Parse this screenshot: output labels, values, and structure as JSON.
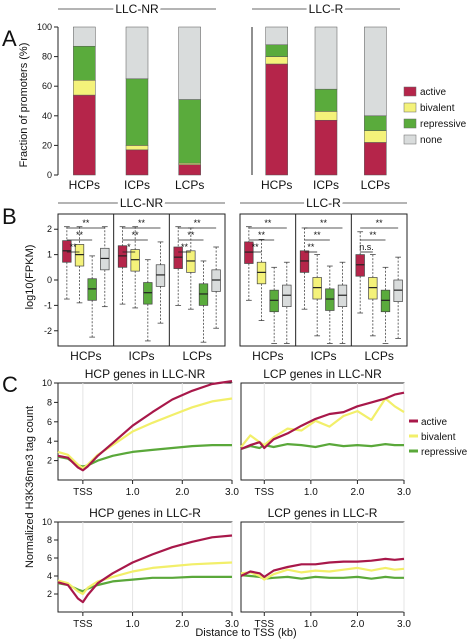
{
  "colors": {
    "active": "#b5254a",
    "bivalent": "#f4f27a",
    "repressive": "#5aab3c",
    "none": "#d9dcdc"
  },
  "panels": {
    "a": "A",
    "b": "B",
    "c": "C"
  },
  "chart_data": [
    {
      "id": "A-LLC-NR",
      "type": "bar",
      "stacked": true,
      "title": "LLC-NR",
      "ylabel": "Fraction of promoters (%)",
      "ylim": [
        0,
        100
      ],
      "yticks": [
        "0",
        "20",
        "40",
        "60",
        "80",
        "100"
      ],
      "categories": [
        "HCPs",
        "ICPs",
        "LCPs"
      ],
      "series": [
        {
          "name": "active",
          "values": [
            54,
            17,
            7
          ]
        },
        {
          "name": "bivalent",
          "values": [
            10,
            3,
            1
          ]
        },
        {
          "name": "repressive",
          "values": [
            23,
            45,
            43
          ]
        },
        {
          "name": "none",
          "values": [
            13,
            35,
            49
          ]
        }
      ]
    },
    {
      "id": "A-LLC-R",
      "type": "bar",
      "stacked": true,
      "title": "LLC-R",
      "ylim": [
        0,
        100
      ],
      "categories": [
        "HCPs",
        "ICPs",
        "LCPs"
      ],
      "legend": {
        "position": "right",
        "entries": [
          "active",
          "bivalent",
          "repressive",
          "none"
        ]
      },
      "series": [
        {
          "name": "active",
          "values": [
            75,
            37,
            22
          ]
        },
        {
          "name": "bivalent",
          "values": [
            5,
            6,
            8
          ]
        },
        {
          "name": "repressive",
          "values": [
            8,
            15,
            10
          ]
        },
        {
          "name": "none",
          "values": [
            12,
            42,
            60
          ]
        }
      ]
    },
    {
      "id": "B-LLC-NR",
      "type": "box",
      "title": "LLC-NR",
      "ylabel": "log10(FPKM)",
      "yticks": [
        "-2",
        "-1",
        "0",
        "1",
        "2"
      ],
      "ylim": [
        -2.6,
        2.6
      ],
      "groups": [
        {
          "label": "HCPs",
          "medians": [
            1.15,
            1.0,
            -0.35,
            0.85
          ],
          "sig": [
            "**",
            "**",
            "**"
          ]
        },
        {
          "label": "ICPs",
          "medians": [
            0.95,
            0.8,
            -0.5,
            0.2
          ],
          "sig": [
            "*",
            "**",
            "**"
          ]
        },
        {
          "label": "LCPs",
          "medians": [
            0.9,
            0.75,
            -0.55,
            0.0
          ],
          "sig": [
            "**",
            "**",
            "**"
          ]
        }
      ]
    },
    {
      "id": "B-LLC-R",
      "type": "box",
      "title": "LLC-R",
      "ylim": [
        -2.6,
        2.6
      ],
      "groups": [
        {
          "label": "HCPs",
          "medians": [
            1.1,
            0.3,
            -0.8,
            -0.6
          ],
          "sig": [
            "**",
            "**",
            "**"
          ]
        },
        {
          "label": "ICPs",
          "medians": [
            0.75,
            -0.3,
            -0.75,
            -0.6
          ],
          "sig": [
            "**",
            "**",
            "**"
          ]
        },
        {
          "label": "LCPs",
          "medians": [
            0.6,
            -0.3,
            -0.8,
            -0.4
          ],
          "sig": [
            "n.s.",
            "**",
            "**"
          ]
        }
      ]
    },
    {
      "id": "C-HCP-NR",
      "type": "line",
      "title": "HCP genes in LLC-NR",
      "ylabel": "Normalized H3K36me3 tag count",
      "xlim": [
        -0.5,
        3.0
      ],
      "ylim": [
        0,
        10
      ],
      "yticks": [
        "2",
        "4",
        "6",
        "8",
        "10"
      ],
      "xticks": [
        "TSS",
        "1.0",
        "2.0",
        "3.0"
      ],
      "legend": {
        "position": "right",
        "entries": [
          "active",
          "bivalent",
          "repressive"
        ]
      },
      "x": [
        -0.5,
        -0.3,
        -0.1,
        0,
        0.1,
        0.3,
        0.6,
        1.0,
        1.4,
        1.8,
        2.2,
        2.6,
        3.0
      ],
      "series": [
        {
          "name": "active",
          "values": [
            2.5,
            2.3,
            1.3,
            1.0,
            1.4,
            2.5,
            3.8,
            5.6,
            7.0,
            8.3,
            9.2,
            9.9,
            10.2
          ]
        },
        {
          "name": "bivalent",
          "values": [
            2.9,
            2.6,
            1.6,
            1.2,
            1.6,
            2.6,
            3.6,
            5.0,
            5.9,
            6.7,
            7.5,
            8.1,
            8.4
          ]
        },
        {
          "name": "repressive",
          "values": [
            2.4,
            2.2,
            1.5,
            1.4,
            1.5,
            2.0,
            2.5,
            2.9,
            3.1,
            3.3,
            3.5,
            3.6,
            3.6
          ]
        }
      ]
    },
    {
      "id": "C-LCP-NR",
      "type": "line",
      "title": "LCP genes in LLC-NR",
      "xlim": [
        -0.5,
        3.0
      ],
      "ylim": [
        0,
        10
      ],
      "xticks": [
        "TSS",
        "1.0",
        "2.0",
        "3.0"
      ],
      "x": [
        -0.5,
        -0.3,
        -0.1,
        0,
        0.2,
        0.5,
        0.8,
        1.1,
        1.4,
        1.7,
        2.0,
        2.3,
        2.6,
        2.8,
        3.0
      ],
      "series": [
        {
          "name": "active",
          "values": [
            3.2,
            3.6,
            3.9,
            3.3,
            4.2,
            4.8,
            5.6,
            6.3,
            6.8,
            7.0,
            7.6,
            8.0,
            8.4,
            8.8,
            9.0
          ]
        },
        {
          "name": "bivalent",
          "values": [
            3.4,
            4.6,
            3.9,
            3.6,
            4.4,
            5.3,
            5.1,
            6.1,
            5.5,
            6.6,
            7.1,
            6.2,
            8.4,
            7.6,
            7.0
          ]
        },
        {
          "name": "repressive",
          "values": [
            3.2,
            3.5,
            3.3,
            3.6,
            3.4,
            3.7,
            3.6,
            3.4,
            3.7,
            3.5,
            3.6,
            3.5,
            3.7,
            3.6,
            3.6
          ]
        }
      ]
    },
    {
      "id": "C-HCP-R",
      "type": "line",
      "title": "HCP genes in LLC-R",
      "xlim": [
        -0.5,
        3.0
      ],
      "ylim": [
        0,
        10
      ],
      "yticks": [
        "2",
        "4",
        "6",
        "8",
        "10"
      ],
      "xticks": [
        "TSS",
        "1.0",
        "2.0",
        "3.0"
      ],
      "xlabel": "Distance to TSS (kb)",
      "x": [
        -0.5,
        -0.3,
        -0.1,
        0,
        0.1,
        0.3,
        0.6,
        1.0,
        1.4,
        1.8,
        2.2,
        2.6,
        3.0
      ],
      "series": [
        {
          "name": "active",
          "values": [
            3.3,
            3.0,
            1.5,
            1.1,
            1.9,
            3.2,
            4.3,
            5.5,
            6.4,
            7.2,
            7.8,
            8.3,
            8.5
          ]
        },
        {
          "name": "bivalent",
          "values": [
            3.5,
            3.2,
            2.3,
            2.0,
            2.7,
            3.4,
            3.9,
            4.5,
            4.9,
            5.1,
            5.3,
            5.4,
            5.5
          ]
        },
        {
          "name": "repressive",
          "values": [
            3.2,
            3.0,
            2.5,
            2.3,
            2.6,
            3.0,
            3.4,
            3.6,
            3.8,
            3.8,
            3.9,
            3.9,
            3.9
          ]
        }
      ]
    },
    {
      "id": "C-LCP-R",
      "type": "line",
      "title": "LCP genes in LLC-R",
      "xlim": [
        -0.5,
        3.0
      ],
      "ylim": [
        0,
        10
      ],
      "xticks": [
        "TSS",
        "1.0",
        "2.0",
        "3.0"
      ],
      "x": [
        -0.5,
        -0.3,
        -0.1,
        0,
        0.2,
        0.5,
        0.8,
        1.1,
        1.4,
        1.7,
        2.0,
        2.3,
        2.6,
        2.8,
        3.0
      ],
      "series": [
        {
          "name": "active",
          "values": [
            4.0,
            4.5,
            4.3,
            3.9,
            4.6,
            5.0,
            5.3,
            5.3,
            5.5,
            5.6,
            5.6,
            5.7,
            5.9,
            5.8,
            5.9
          ]
        },
        {
          "name": "bivalent",
          "values": [
            4.3,
            4.4,
            4.0,
            3.6,
            4.2,
            4.7,
            4.4,
            4.6,
            4.5,
            4.7,
            4.9,
            4.6,
            4.9,
            4.7,
            4.8
          ]
        },
        {
          "name": "repressive",
          "values": [
            4.1,
            4.0,
            3.9,
            3.7,
            3.8,
            3.9,
            3.7,
            3.9,
            3.8,
            3.8,
            3.9,
            3.7,
            3.9,
            3.8,
            3.8
          ]
        }
      ]
    }
  ]
}
